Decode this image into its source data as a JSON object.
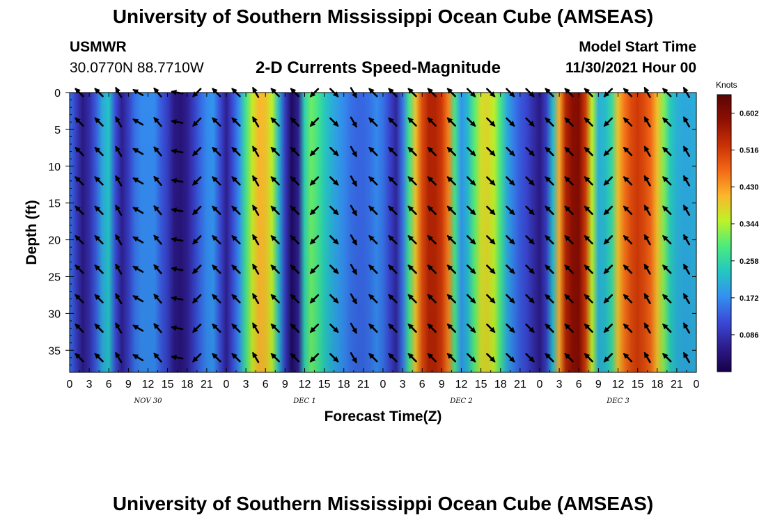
{
  "header": {
    "title": "University of Southern Mississippi Ocean Cube (AMSEAS)",
    "station": "USMWR",
    "coordinates": "30.0770N  88.7710W",
    "product": "2-D Currents Speed-Magnitude",
    "model_start_label": "Model Start Time",
    "model_start_time": "11/30/2021 Hour 00"
  },
  "footer": {
    "title": "University of Southern Mississippi Ocean Cube (AMSEAS)"
  },
  "chart_data": {
    "type": "heatmap",
    "title": "2-D Currents Speed-Magnitude",
    "xlabel": "Forecast Time(Z)",
    "ylabel": "Depth (ft)",
    "x_hours": [
      0,
      96
    ],
    "x_tick_step_hours": 3,
    "x_tick_labels": [
      "0",
      "3",
      "6",
      "9",
      "12",
      "15",
      "18",
      "21",
      "0",
      "3",
      "6",
      "9",
      "12",
      "15",
      "18",
      "21",
      "0",
      "3",
      "6",
      "9",
      "12",
      "15",
      "18",
      "21",
      "0",
      "3",
      "6",
      "9",
      "12",
      "15",
      "18",
      "21",
      "0"
    ],
    "date_labels": [
      {
        "label": "NOV 30",
        "hour": 12
      },
      {
        "label": "DEC 1",
        "hour": 36
      },
      {
        "label": "DEC 2",
        "hour": 60
      },
      {
        "label": "DEC 3",
        "hour": 84
      }
    ],
    "y_range": [
      0,
      38
    ],
    "y_ticks": [
      0,
      5,
      10,
      15,
      20,
      25,
      30,
      35
    ],
    "y_tick_labels": [
      "0",
      "5",
      "10",
      "15",
      "20",
      "25",
      "30",
      "35"
    ],
    "colorbar": {
      "unit": "Knots",
      "range": [
        0.0,
        0.645
      ],
      "tick_values": [
        0.086,
        0.172,
        0.258,
        0.344,
        0.43,
        0.516,
        0.602
      ],
      "tick_labels": [
        "0.086",
        "0.172",
        "0.258",
        "0.344",
        "0.430",
        "0.516",
        "0.602"
      ],
      "colors": [
        "#17004a",
        "#2e1d8e",
        "#3a4bd8",
        "#3391f1",
        "#23c8c0",
        "#4cec7c",
        "#bff227",
        "#fbb62c",
        "#f46816",
        "#c93105",
        "#8e0f02",
        "#5a0404"
      ]
    },
    "speed_profile": {
      "hours": [
        0,
        1,
        2,
        3,
        4,
        5,
        6,
        7,
        8,
        9,
        10,
        11,
        12,
        13,
        14,
        15,
        16,
        17,
        18,
        19,
        20,
        21,
        22,
        23,
        24,
        25,
        26,
        27,
        28,
        29,
        30,
        31,
        32,
        33,
        34,
        35,
        36,
        37,
        38,
        39,
        40,
        41,
        42,
        43,
        44,
        45,
        46,
        47,
        48,
        49,
        50,
        51,
        52,
        53,
        54,
        55,
        56,
        57,
        58,
        59,
        60,
        61,
        62,
        63,
        64,
        65,
        66,
        67,
        68,
        69,
        70,
        71,
        72,
        73,
        74,
        75,
        76,
        77,
        78,
        79,
        80,
        81,
        82,
        83,
        84,
        85,
        86,
        87,
        88,
        89,
        90,
        91,
        92,
        93,
        94,
        95,
        96
      ],
      "knots": [
        0.15,
        0.1,
        0.05,
        0.08,
        0.13,
        0.2,
        0.23,
        0.12,
        0.06,
        0.1,
        0.15,
        0.17,
        0.17,
        0.17,
        0.13,
        0.1,
        0.05,
        0.04,
        0.06,
        0.1,
        0.14,
        0.17,
        0.18,
        0.12,
        0.06,
        0.12,
        0.18,
        0.28,
        0.36,
        0.41,
        0.4,
        0.35,
        0.22,
        0.1,
        0.02,
        0.06,
        0.25,
        0.31,
        0.28,
        0.24,
        0.21,
        0.19,
        0.17,
        0.15,
        0.14,
        0.14,
        0.15,
        0.17,
        0.15,
        0.11,
        0.07,
        0.15,
        0.28,
        0.4,
        0.5,
        0.55,
        0.55,
        0.52,
        0.45,
        0.28,
        0.18,
        0.22,
        0.3,
        0.37,
        0.38,
        0.35,
        0.28,
        0.2,
        0.16,
        0.13,
        0.11,
        0.08,
        0.05,
        0.1,
        0.22,
        0.42,
        0.55,
        0.59,
        0.6,
        0.52,
        0.35,
        0.21,
        0.22,
        0.26,
        0.4,
        0.46,
        0.5,
        0.52,
        0.5,
        0.47,
        0.4,
        0.32,
        0.24,
        0.21,
        0.2,
        0.2,
        0.21
      ]
    },
    "vector_rows_ft": [
      0,
      4,
      8,
      12,
      16,
      20,
      24,
      28,
      32,
      36
    ],
    "vector_columns": [
      {
        "hour": 1.5,
        "angle_deg": 135
      },
      {
        "hour": 4.5,
        "angle_deg": 135
      },
      {
        "hour": 7.5,
        "angle_deg": 120
      },
      {
        "hour": 10.5,
        "angle_deg": 150
      },
      {
        "hour": 13.5,
        "angle_deg": 130
      },
      {
        "hour": 16.5,
        "angle_deg": 170
      },
      {
        "hour": 19.5,
        "angle_deg": 225
      },
      {
        "hour": 22.5,
        "angle_deg": 135
      },
      {
        "hour": 25.5,
        "angle_deg": 135
      },
      {
        "hour": 28.5,
        "angle_deg": 120
      },
      {
        "hour": 31.5,
        "angle_deg": 135
      },
      {
        "hour": 34.5,
        "angle_deg": 135
      },
      {
        "hour": 37.5,
        "angle_deg": 225
      },
      {
        "hour": 40.5,
        "angle_deg": 315
      },
      {
        "hour": 43.5,
        "angle_deg": 300
      },
      {
        "hour": 46.5,
        "angle_deg": 135
      },
      {
        "hour": 49.5,
        "angle_deg": 135
      },
      {
        "hour": 52.5,
        "angle_deg": 135
      },
      {
        "hour": 55.5,
        "angle_deg": 135
      },
      {
        "hour": 58.5,
        "angle_deg": 135
      },
      {
        "hour": 61.5,
        "angle_deg": 315
      },
      {
        "hour": 64.5,
        "angle_deg": 315
      },
      {
        "hour": 67.5,
        "angle_deg": 315
      },
      {
        "hour": 70.5,
        "angle_deg": 315
      },
      {
        "hour": 73.5,
        "angle_deg": 135
      },
      {
        "hour": 76.5,
        "angle_deg": 135
      },
      {
        "hour": 79.5,
        "angle_deg": 135
      },
      {
        "hour": 82.5,
        "angle_deg": 225
      },
      {
        "hour": 85.5,
        "angle_deg": 135
      },
      {
        "hour": 88.5,
        "angle_deg": 120
      },
      {
        "hour": 91.5,
        "angle_deg": 135
      },
      {
        "hour": 94.5,
        "angle_deg": 120
      }
    ]
  }
}
